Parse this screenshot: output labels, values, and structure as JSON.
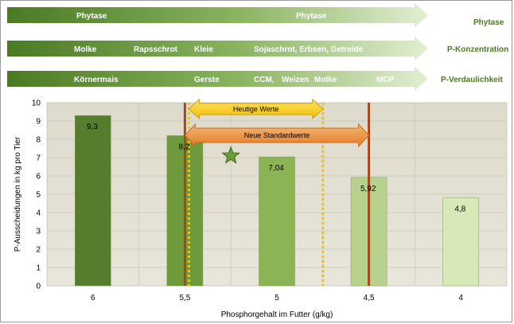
{
  "arrows": [
    {
      "tag": "Phytase",
      "labels": [
        "Phytase",
        "Phytase"
      ]
    },
    {
      "tag": "P-Konzentration",
      "labels": [
        "Molke",
        "Rapsschrot",
        "Kleie",
        "Sojaschrot, Erbsen, Getreide"
      ]
    },
    {
      "tag": "P-Verdaulichkeit",
      "labels": [
        "Körnermais",
        "Gerste",
        "CCM,",
        "Weizen",
        "Molke",
        "MCP"
      ]
    }
  ],
  "chart_data": {
    "type": "bar",
    "categories": [
      "6",
      "5,5",
      "5",
      "4,5",
      "4"
    ],
    "values": [
      9.3,
      8.2,
      7.04,
      5.92,
      4.8
    ],
    "value_labels": [
      "9,3",
      "8,2",
      "7,04",
      "5,92",
      "4,8"
    ],
    "bar_colors": [
      "#567d2e",
      "#6e9a3c",
      "#8cb455",
      "#b6d28c",
      "#d7e8b9"
    ],
    "xlabel": "Phosphorgehalt im Futter (g/kg)",
    "ylabel": "P-Ausscheidungen in kg pro Tier",
    "ylim": [
      0,
      10
    ],
    "yticks": [
      "0",
      "1",
      "2",
      "3",
      "4",
      "5",
      "6",
      "7",
      "8",
      "9",
      "10"
    ],
    "grid": true,
    "annotations": {
      "current_range": {
        "label": "Heutige Werte",
        "from": "5,5",
        "to": "4,75",
        "color": "#f5c400"
      },
      "new_standard_range": {
        "label": "Neue Standardwerte",
        "from": "5,5",
        "to": "4,5",
        "color": "#e58a2e"
      },
      "star_marker": {
        "x": "5,25",
        "y": 7.1
      }
    }
  }
}
